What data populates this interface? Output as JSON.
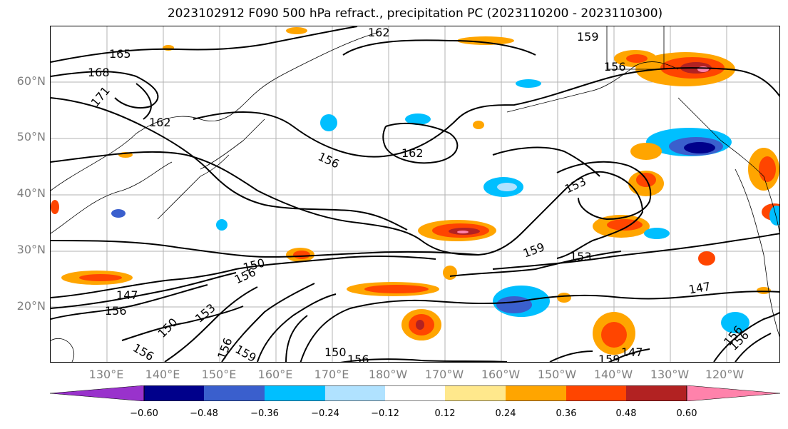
{
  "title": "2023102912 F090 500 hPa refract., precipitation PC (2023110200 - 2023110300)",
  "map": {
    "lat_labels": [
      "60°N",
      "50°N",
      "40°N",
      "30°N",
      "20°N"
    ],
    "lon_labels": [
      "130°E",
      "140°E",
      "150°E",
      "160°E",
      "170°E",
      "180°W",
      "170°W",
      "160°W",
      "150°W",
      "140°W",
      "130°W",
      "120°W"
    ],
    "contour_labels": [
      "162",
      "159",
      "165",
      "168",
      "171",
      "162",
      "156",
      "162",
      "156",
      "153",
      "159",
      "153",
      "150",
      "156",
      "147",
      "156",
      "150",
      "153",
      "156",
      "156",
      "159",
      "150",
      "156",
      "147",
      "156",
      "159",
      "147",
      "156"
    ],
    "shading_colors": {
      "neg_extreme": "#9932CC",
      "neg_060": "#00008B",
      "neg_048": "#3A5FCD",
      "neg_036": "#00BFFF",
      "neg_024": "#B0E2FF",
      "neutral": "#FFFFFF",
      "pos_012": "#FFE88C",
      "pos_024": "#FFA500",
      "pos_036": "#FF4500",
      "pos_048": "#B22222",
      "pos_060": "#FF82AB"
    }
  },
  "colorbar": {
    "ticks": [
      "−0.60",
      "−0.48",
      "−0.36",
      "−0.24",
      "−0.12",
      "0.12",
      "0.24",
      "0.36",
      "0.48",
      "0.60"
    ],
    "colors": [
      "#9932CC",
      "#00008B",
      "#3A5FCD",
      "#00BFFF",
      "#B0E2FF",
      "#FFFFFF",
      "#FFE88C",
      "#FFA500",
      "#FF4500",
      "#B22222",
      "#FF82AB"
    ]
  }
}
